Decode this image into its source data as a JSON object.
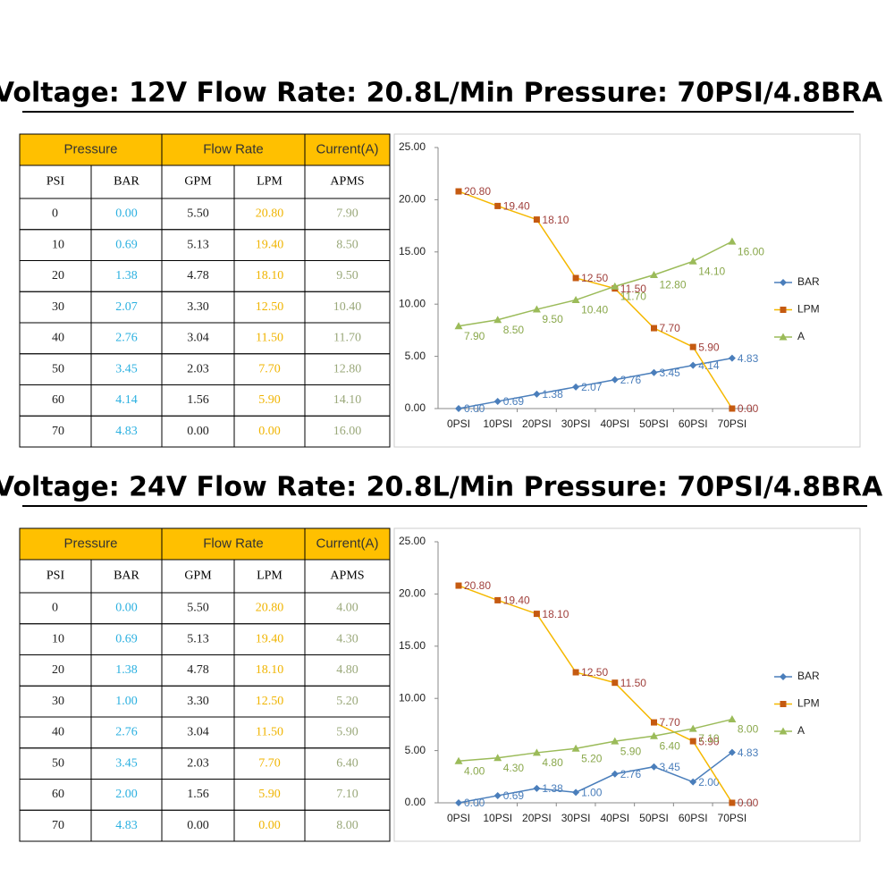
{
  "titles": [
    "Voltage: 12V   Flow Rate: 20.8L/Min   Pressure: 70PSI/4.8BRA",
    "Voltage: 24V   Flow Rate: 20.8L/Min   Pressure:  70PSI/4.8BRA"
  ],
  "tables": [
    {
      "groups": [
        "Pressure",
        "Flow Rate",
        "Current(A)"
      ],
      "columns": [
        "PSI",
        "BAR",
        "GPM",
        "LPM",
        "APMS"
      ],
      "rows": [
        [
          "0",
          "0.00",
          "5.50",
          "20.80",
          "7.90"
        ],
        [
          "10",
          "0.69",
          "5.13",
          "19.40",
          "8.50"
        ],
        [
          "20",
          "1.38",
          "4.78",
          "18.10",
          "9.50"
        ],
        [
          "30",
          "2.07",
          "3.30",
          "12.50",
          "10.40"
        ],
        [
          "40",
          "2.76",
          "3.04",
          "11.50",
          "11.70"
        ],
        [
          "50",
          "3.45",
          "2.03",
          "7.70",
          "12.80"
        ],
        [
          "60",
          "4.14",
          "1.56",
          "5.90",
          "14.10"
        ],
        [
          "70",
          "4.83",
          "0.00",
          "0.00",
          "16.00"
        ]
      ]
    },
    {
      "groups": [
        "Pressure",
        "Flow Rate",
        "Current(A)"
      ],
      "columns": [
        "PSI",
        "BAR",
        "GPM",
        "LPM",
        "APMS"
      ],
      "rows": [
        [
          "0",
          "0.00",
          "5.50",
          "20.80",
          "4.00"
        ],
        [
          "10",
          "0.69",
          "5.13",
          "19.40",
          "4.30"
        ],
        [
          "20",
          "1.38",
          "4.78",
          "18.10",
          "4.80"
        ],
        [
          "30",
          "1.00",
          "3.30",
          "12.50",
          "5.20"
        ],
        [
          "40",
          "2.76",
          "3.04",
          "11.50",
          "5.90"
        ],
        [
          "50",
          "3.45",
          "2.03",
          "7.70",
          "6.40"
        ],
        [
          "60",
          "2.00",
          "1.56",
          "5.90",
          "7.10"
        ],
        [
          "70",
          "4.83",
          "0.00",
          "0.00",
          "8.00"
        ]
      ]
    }
  ],
  "chart_data": [
    {
      "type": "line",
      "categories": [
        "0PSI",
        "10PSI",
        "20PSI",
        "30PSI",
        "40PSI",
        "50PSI",
        "60PSI",
        "70PSI"
      ],
      "ylim": [
        0,
        25
      ],
      "yticks": [
        {
          "value": 0,
          "label": "0.00"
        },
        {
          "value": 5,
          "label": "5.00"
        },
        {
          "value": 10,
          "label": "10.00"
        },
        {
          "value": 15,
          "label": "15.00"
        },
        {
          "value": 20,
          "label": "20.00"
        },
        {
          "value": 25,
          "label": "25.00"
        }
      ],
      "legend": "right",
      "series": [
        {
          "name": "BAR",
          "color": "#4a7ebb",
          "values": [
            0,
            0.69,
            1.38,
            2.07,
            2.76,
            3.45,
            4.14,
            4.83
          ],
          "value_labels": [
            "0.00",
            "0.69",
            "1.38",
            "2.07",
            "2.76",
            "3.45",
            "4.14",
            "4.83"
          ]
        },
        {
          "name": "LPM",
          "color": "#f5b800",
          "values": [
            20.8,
            19.4,
            18.1,
            12.5,
            11.5,
            7.7,
            5.9,
            0
          ],
          "value_labels": [
            "20.80",
            "19.40",
            "18.10",
            "12.50",
            "11.50",
            "7.70",
            "5.90",
            "0.00"
          ]
        },
        {
          "name": "A",
          "color": "#9bbb59",
          "values": [
            7.9,
            8.5,
            9.5,
            10.4,
            11.7,
            12.8,
            14.1,
            16
          ],
          "value_labels": [
            "7.90",
            "8.50",
            "9.50",
            "10.40",
            "11.70",
            "12.80",
            "14.10",
            "16.00"
          ]
        }
      ]
    },
    {
      "type": "line",
      "categories": [
        "0PSI",
        "10PSI",
        "20PSI",
        "30PSI",
        "40PSI",
        "50PSI",
        "60PSI",
        "70PSI"
      ],
      "ylim": [
        0,
        25
      ],
      "yticks": [
        {
          "value": 0,
          "label": "0.00"
        },
        {
          "value": 5,
          "label": "5.00"
        },
        {
          "value": 10,
          "label": "10.00"
        },
        {
          "value": 15,
          "label": "15.00"
        },
        {
          "value": 20,
          "label": "20.00"
        },
        {
          "value": 25,
          "label": "25.00"
        }
      ],
      "legend": "right",
      "series": [
        {
          "name": "BAR",
          "color": "#4a7ebb",
          "values": [
            0,
            0.69,
            1.38,
            1,
            2.76,
            3.45,
            2,
            4.83
          ],
          "value_labels": [
            "0.00",
            "0.69",
            "1.38",
            "1.00",
            "2.76",
            "3.45",
            "2.00",
            "4.83"
          ]
        },
        {
          "name": "LPM",
          "color": "#f5b800",
          "values": [
            20.8,
            19.4,
            18.1,
            12.5,
            11.5,
            7.7,
            5.9,
            0
          ],
          "value_labels": [
            "20.80",
            "19.40",
            "18.10",
            "12.50",
            "11.50",
            "7.70",
            "5.90",
            "0.00"
          ]
        },
        {
          "name": "A",
          "color": "#9bbb59",
          "values": [
            4,
            4.3,
            4.8,
            5.2,
            5.9,
            6.4,
            7.1,
            8
          ],
          "value_labels": [
            "4.00",
            "4.30",
            "4.80",
            "5.20",
            "5.90",
            "6.40",
            "7.10",
            "8.00"
          ]
        }
      ]
    }
  ]
}
